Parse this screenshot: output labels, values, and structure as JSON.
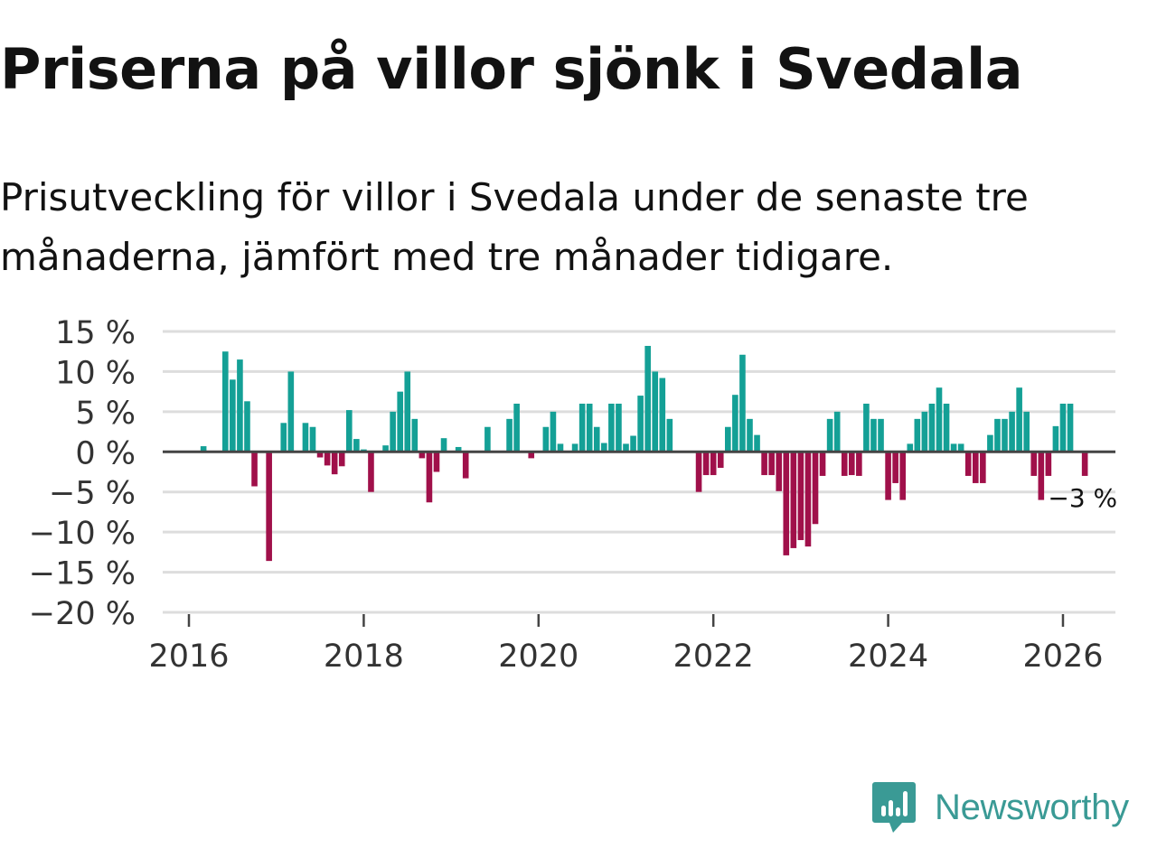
{
  "title": "Priserna på villor sjönk i Svedala",
  "subtitle": "Prisutveckling för villor i Svedala under de senaste tre månaderna, jämfört med tre månader tidigare.",
  "brand": {
    "name": "Newsworthy",
    "icon": "newsworthy-logo-icon",
    "color": "#3a9a95"
  },
  "colors": {
    "positive": "#14a096",
    "negative": "#a0104a",
    "grid": "#dddddd",
    "zero": "#444444"
  },
  "chart_data": {
    "type": "bar",
    "title": "Priserna på villor sjönk i Svedala",
    "xlabel": "",
    "ylabel": "",
    "ylim": [
      -20,
      15
    ],
    "xlim": [
      2015.7,
      2026.6
    ],
    "y_ticks": [
      15,
      10,
      5,
      0,
      -5,
      -10,
      -15,
      -20
    ],
    "y_tick_labels": [
      "15 %",
      "10 %",
      "5 %",
      "0 %",
      "−5 %",
      "−10 %",
      "−15 %",
      "−20 %"
    ],
    "x_ticks": [
      2016,
      2018,
      2020,
      2022,
      2024,
      2026
    ],
    "x_tick_labels": [
      "2016",
      "2018",
      "2020",
      "2022",
      "2024",
      "2026"
    ],
    "start": "2016-01",
    "values": [
      0,
      0,
      0.7,
      0,
      0,
      12.5,
      9,
      11.5,
      6.3,
      -4.3,
      0,
      -13.6,
      0,
      3.6,
      10,
      0,
      3.6,
      3.1,
      -0.7,
      -1.7,
      -2.8,
      -1.8,
      5.2,
      1.6,
      0.3,
      -5,
      0,
      0.8,
      5,
      7.5,
      10,
      4.1,
      -0.8,
      -6.3,
      -2.5,
      1.7,
      0,
      0.6,
      -3.3,
      0,
      0,
      3.1,
      0,
      0,
      4.1,
      6,
      0,
      -0.8,
      0,
      3.1,
      5,
      1,
      0,
      1,
      6,
      6,
      3.1,
      1.1,
      6,
      6,
      1,
      2,
      7,
      13.2,
      10,
      9.2,
      4.1,
      0,
      0,
      0,
      -5,
      -2.9,
      -2.9,
      -2,
      3.1,
      7.1,
      12.1,
      4.1,
      2.1,
      -2.9,
      -2.9,
      -4.9,
      -12.9,
      -12,
      -11,
      -11.8,
      -9,
      -3,
      4.1,
      5,
      -3,
      -2.9,
      -3,
      6,
      4.1,
      4.1,
      -6,
      -3.9,
      -6,
      1,
      4.1,
      5,
      6,
      8,
      6,
      1,
      1,
      -3,
      -3.9,
      -3.9,
      2.1,
      4.1,
      4.1,
      5,
      8,
      5,
      -3,
      -6,
      -3,
      3.2,
      6,
      6,
      0,
      -3
    ],
    "annotation": {
      "label": "−3 %",
      "value": -3,
      "position": "last-bar"
    }
  }
}
